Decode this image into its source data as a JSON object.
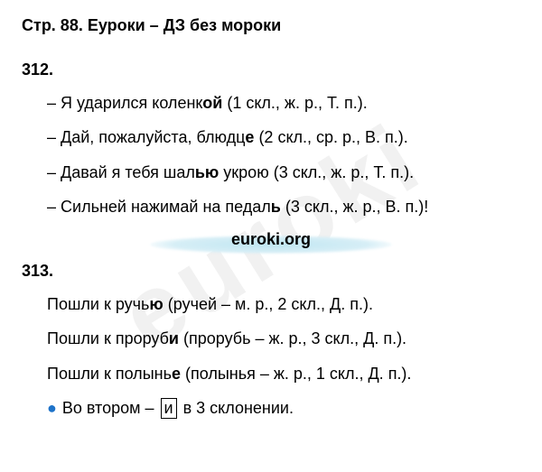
{
  "title": "Стр. 88. Еуроки – ДЗ без мороки",
  "watermark": "euroki",
  "brand": "euroki.org",
  "colors": {
    "text": "#000000",
    "background": "#ffffff",
    "bullet": "#1e73c9",
    "highlight": "#cdeaf3",
    "watermark_opacity": 0.05
  },
  "sections": [
    {
      "num": "312.",
      "items": [
        {
          "prefix": "– Я ударился коленк",
          "bold": "ой",
          "suffix": " (1 скл., ж. р., Т. п.)."
        },
        {
          "prefix": "– Дай, пожалуйста, блюдц",
          "bold": "е",
          "suffix": " (2 скл., ср. р., В. п.)."
        },
        {
          "prefix": "– Давай я тебя шал",
          "bold": "ью",
          "suffix": " укрою (3 скл., ж. р., Т. п.)."
        },
        {
          "prefix": "– Сильней нажимай на педал",
          "bold": "ь",
          "suffix": " (3 скл., ж. р., В. п.)!"
        }
      ]
    },
    {
      "num": "313.",
      "items2": [
        {
          "prefix": "Пошли к ручь",
          "bold": "ю",
          "suffix": " (ручей – м. р., 2 скл., Д. п.).",
          "plus": true
        },
        {
          "prefix": "Пошли к проруб",
          "bold": "и",
          "suffix": " (прорубь – ж. р., 3 скл., Д. п.)."
        },
        {
          "prefix": "Пошли к полынь",
          "bold": "е",
          "suffix": " (полынья – ж. р., 1 скл., Д. п.)."
        }
      ],
      "footer": {
        "pre": "Во втором – ",
        "boxed": "и",
        "post": " в 3 склонении."
      }
    }
  ]
}
